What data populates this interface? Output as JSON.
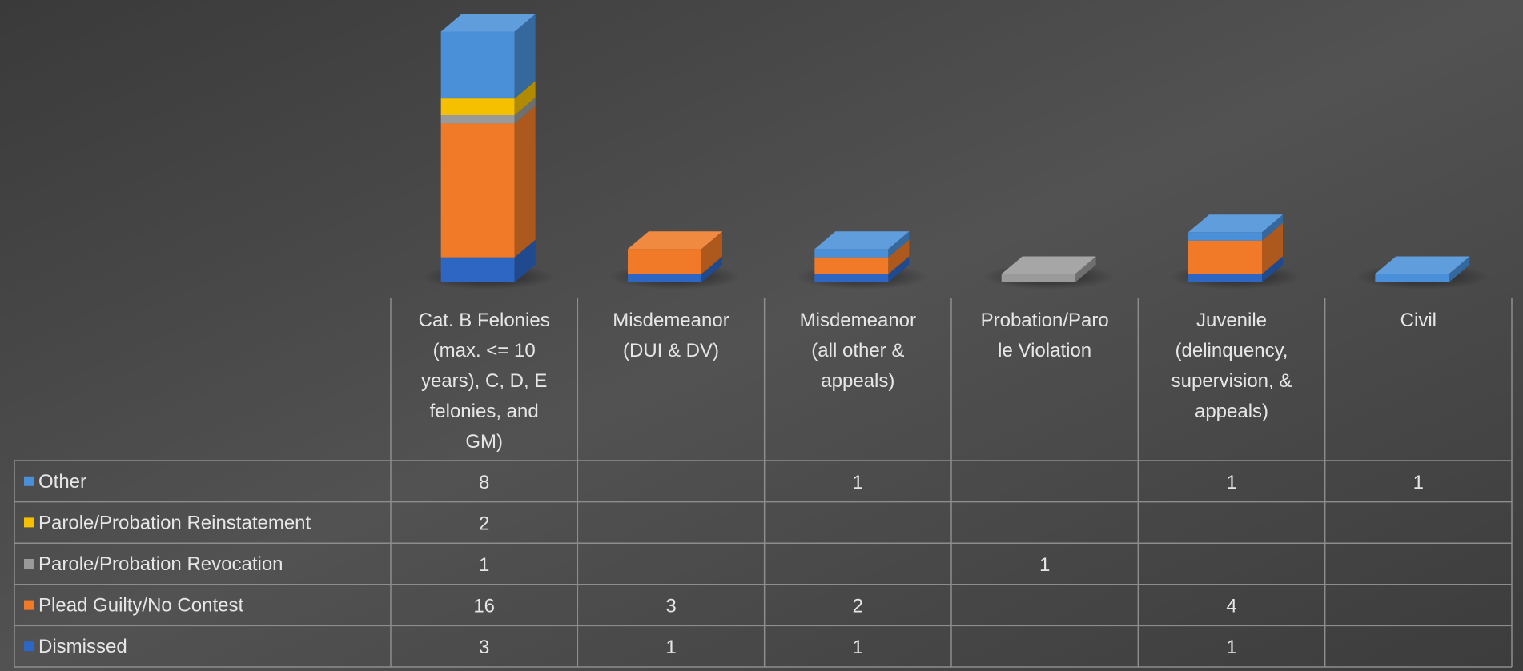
{
  "chart_data": {
    "type": "bar",
    "stacked": true,
    "three_d": true,
    "legend": "data-table",
    "grid": false,
    "categories": [
      [
        "Cat. B Felonies",
        "(max. <= 10",
        "years), C, D, E",
        "felonies, and",
        "GM)"
      ],
      [
        "Misdemeanor",
        "(DUI & DV)"
      ],
      [
        "Misdemeanor",
        "(all other &",
        "appeals)"
      ],
      [
        "Probation/Paro",
        "le Violation"
      ],
      [
        "Juvenile",
        "(delinquency,",
        "supervision, &",
        "appeals)"
      ],
      [
        "Civil"
      ]
    ],
    "series": [
      {
        "name": "Dismissed",
        "color": "#2e66c4",
        "values": [
          3,
          1,
          1,
          null,
          1,
          null
        ]
      },
      {
        "name": "Plead Guilty/No Contest",
        "color": "#f07a27",
        "values": [
          16,
          3,
          2,
          null,
          4,
          null
        ]
      },
      {
        "name": "Parole/Probation Revocation",
        "color": "#9a9a9a",
        "values": [
          1,
          null,
          null,
          1,
          null,
          null
        ]
      },
      {
        "name": "Parole/Probation Reinstatement",
        "color": "#f5c000",
        "values": [
          2,
          null,
          null,
          null,
          null,
          null
        ]
      },
      {
        "name": "Other",
        "color": "#4a90d9",
        "values": [
          8,
          null,
          1,
          null,
          1,
          1
        ]
      }
    ],
    "table_row_order": [
      "Other",
      "Parole/Probation Reinstatement",
      "Parole/Probation Revocation",
      "Plead Guilty/No Contest",
      "Dismissed"
    ]
  }
}
